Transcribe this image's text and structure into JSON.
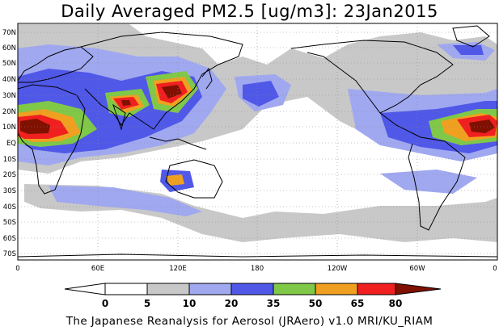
{
  "title": "Daily Averaged PM2.5 [ug/m3]: 23Jan2015",
  "footer": "The Japanese Reanalysis for Aerosol (JRAero) v1.0 MRI/KU_RIAM",
  "axes": {
    "lat_labels": [
      "70N",
      "60N",
      "50N",
      "40N",
      "30N",
      "20N",
      "10N",
      "EQ",
      "10S",
      "20S",
      "30S",
      "40S",
      "50S",
      "60S",
      "70S"
    ],
    "lon_labels": [
      "0",
      "60E",
      "120E",
      "180",
      "120W",
      "60W",
      "0"
    ]
  },
  "colorbar": {
    "ticks": [
      "0",
      "5",
      "10",
      "20",
      "35",
      "50",
      "65",
      "80"
    ],
    "colors": [
      "#ffffff",
      "#c8c8c8",
      "#a0a8f0",
      "#5058e8",
      "#80c848",
      "#f0a020",
      "#f02020",
      "#801000"
    ]
  },
  "levels_colors": {
    "5-10": "#c8c8c8",
    "10-20": "#a0a8f0",
    "20-35": "#5058e8",
    "35-50": "#80c848",
    "50-65": "#f0a020",
    "65-80": "#f02020",
    "80+": "#801000"
  }
}
